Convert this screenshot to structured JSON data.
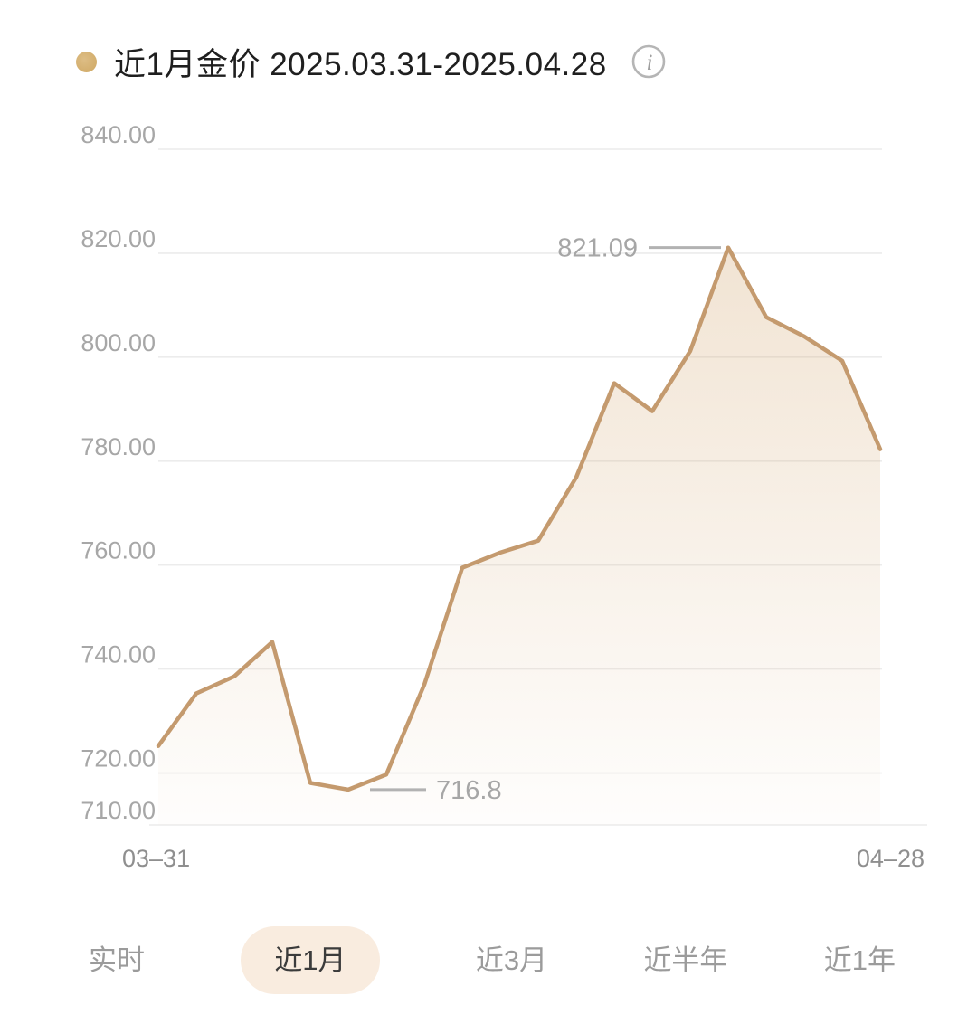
{
  "header": {
    "title": "近1月金价 2025.03.31-2025.04.28",
    "info_icon_glyph": "i"
  },
  "chart_data": {
    "type": "area",
    "title": "近1月金价",
    "date_range": "2025.03.31-2025.04.28",
    "series": [
      {
        "name": "金价",
        "values": [
          725.2,
          735.3,
          738.6,
          745.2,
          718.1,
          716.8,
          719.7,
          737.0,
          759.5,
          762.4,
          764.7,
          776.9,
          795.0,
          789.6,
          801.2,
          821.09,
          807.7,
          804.0,
          799.3,
          782.3
        ]
      }
    ],
    "x_tick_labels": [
      "03–31",
      "04–28"
    ],
    "y_tick_labels": [
      "840.00",
      "820.00",
      "800.00",
      "780.00",
      "760.00",
      "740.00",
      "720.00",
      "710.00"
    ],
    "y_tick_values": [
      840,
      820,
      800,
      780,
      760,
      740,
      720,
      710
    ],
    "ylim": [
      710,
      840
    ],
    "grid": true,
    "legend": false,
    "annotations": {
      "max": {
        "label": "821.09",
        "value": 821.09,
        "index": 15
      },
      "min": {
        "label": "716.8",
        "value": 716.8,
        "index": 5
      }
    },
    "colors": {
      "line": "#c49a6e",
      "area_top": "rgba(210,165,110,0.30)",
      "area_bottom": "rgba(210,165,110,0.02)",
      "grid": "#ececec",
      "axis_text": "#a7a7a7",
      "annotation_text": "#a6a6a6",
      "connector": "#b2b2b2"
    }
  },
  "tabs": {
    "items": [
      {
        "label": "实时",
        "selected": false
      },
      {
        "label": "近1月",
        "selected": true
      },
      {
        "label": "近3月",
        "selected": false
      },
      {
        "label": "近半年",
        "selected": false
      },
      {
        "label": "近1年",
        "selected": false
      }
    ]
  }
}
